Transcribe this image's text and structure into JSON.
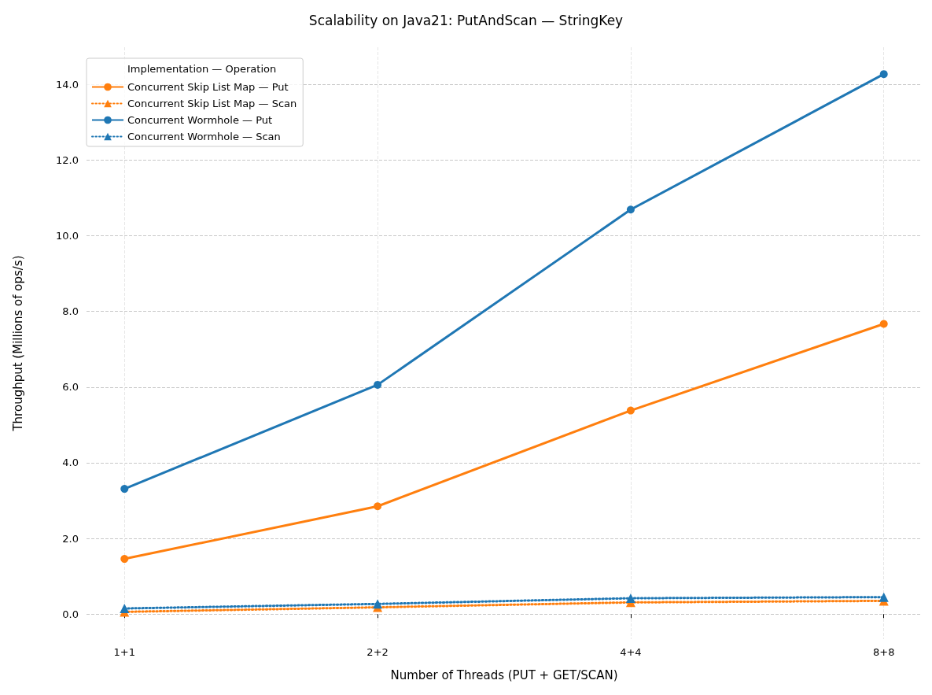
{
  "chart_data": {
    "type": "line",
    "title": "Scalability on Java21: PutAndScan — StringKey",
    "xlabel": "Number of Threads (PUT + GET/SCAN)",
    "ylabel": "Throughput (Millions of ops/s)",
    "legend_title": "Implementation — Operation",
    "categories": [
      "1+1",
      "2+2",
      "4+4",
      "8+8"
    ],
    "ylim": [
      -0.66,
      14.98
    ],
    "yticks": [
      {
        "value": 0,
        "label": "0.0"
      },
      {
        "value": 2,
        "label": "2.0"
      },
      {
        "value": 4,
        "label": "4.0"
      },
      {
        "value": 6,
        "label": "6.0"
      },
      {
        "value": 8,
        "label": "8.0"
      },
      {
        "value": 10,
        "label": "10.0"
      },
      {
        "value": 12,
        "label": "12.0"
      },
      {
        "value": 14,
        "label": "14.0"
      }
    ],
    "grid": true,
    "legend": "top left",
    "series": [
      {
        "name": "Concurrent Skip List Map — Put",
        "color": "#ff7f0e",
        "values": [
          1.46,
          2.85,
          5.38,
          7.67
        ],
        "marker": "circle",
        "line_style": "solid"
      },
      {
        "name": "Concurrent Skip List Map — Scan",
        "color": "#ff7f0e",
        "values": [
          0.06,
          0.18,
          0.31,
          0.35
        ],
        "marker": "triangle",
        "line_style": "dotted"
      },
      {
        "name": "Concurrent Wormhole — Put",
        "color": "#1f77b4",
        "values": [
          3.31,
          6.06,
          10.69,
          14.27
        ],
        "marker": "circle",
        "line_style": "solid"
      },
      {
        "name": "Concurrent Wormhole — Scan",
        "color": "#1f77b4",
        "values": [
          0.15,
          0.27,
          0.42,
          0.45
        ],
        "marker": "triangle",
        "line_style": "dotted"
      }
    ]
  }
}
